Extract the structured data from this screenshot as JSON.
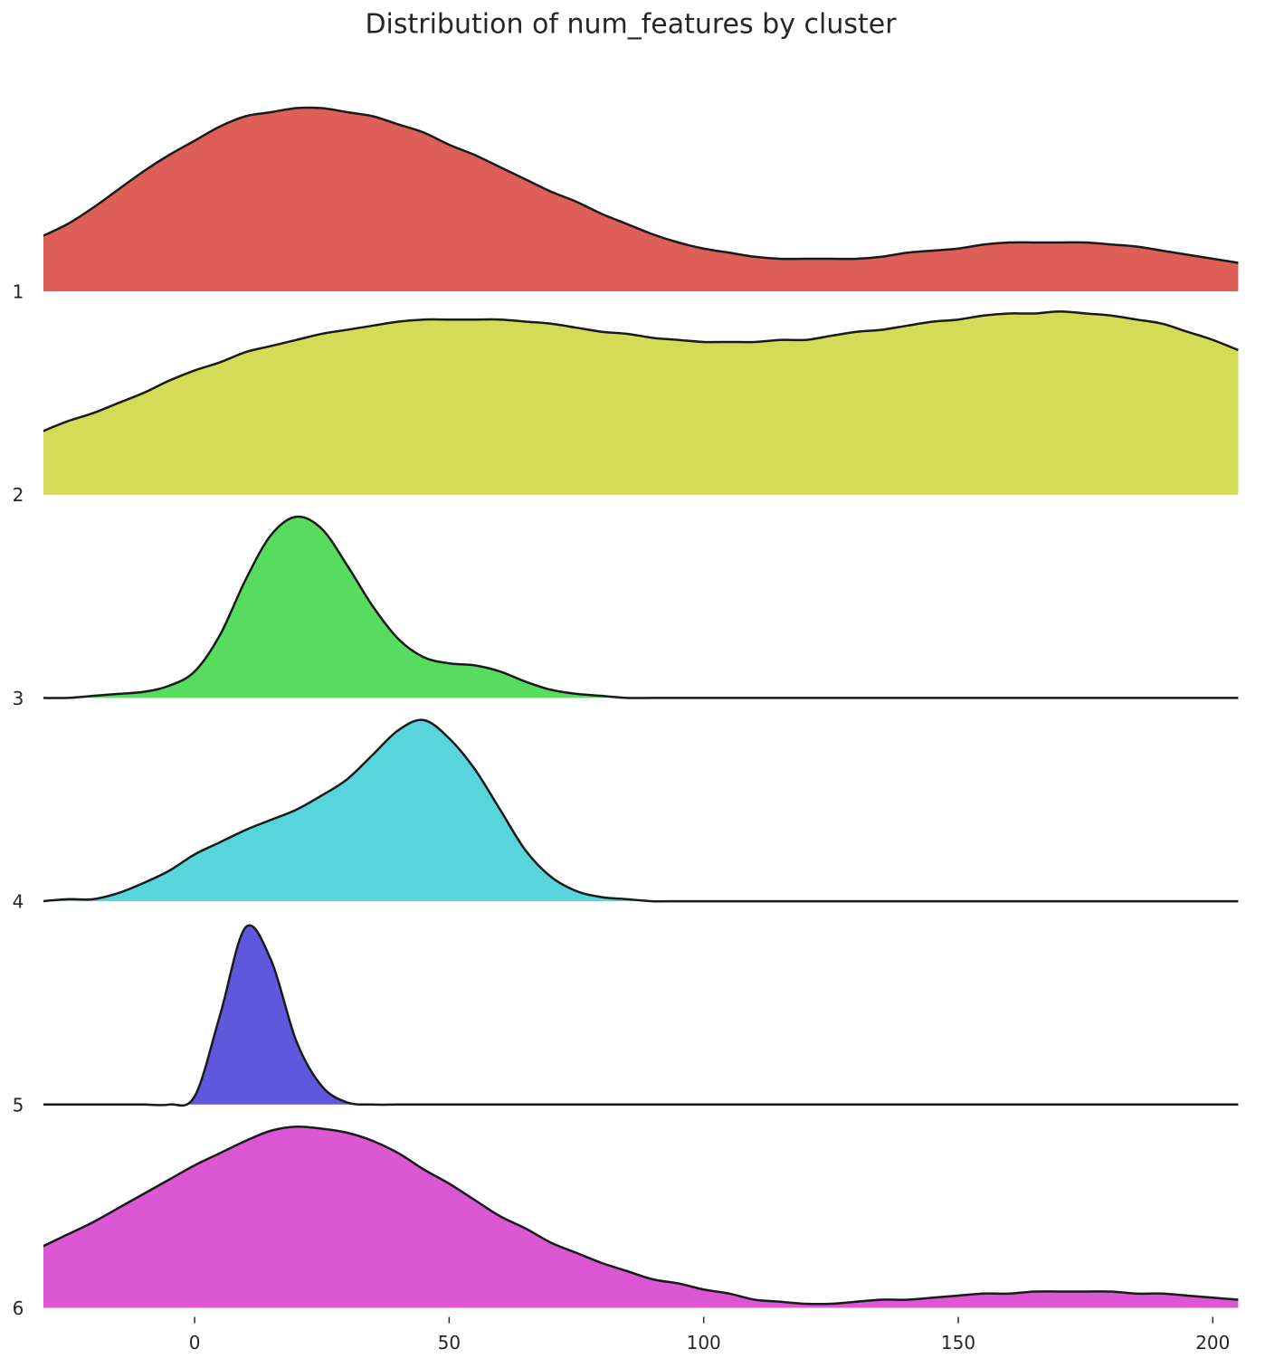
{
  "chart_data": {
    "type": "ridgeline",
    "title": "Distribution of num_features by cluster",
    "x": [
      -30,
      -25,
      -20,
      -15,
      -10,
      -5,
      0,
      5,
      10,
      15,
      20,
      25,
      30,
      35,
      40,
      45,
      50,
      55,
      60,
      65,
      70,
      75,
      80,
      85,
      90,
      95,
      100,
      105,
      110,
      115,
      120,
      125,
      130,
      135,
      140,
      145,
      150,
      155,
      160,
      165,
      170,
      175,
      180,
      185,
      190,
      195,
      200,
      205
    ],
    "xlim": [
      -29.7,
      206.7
    ],
    "xticks": [
      0,
      50,
      100,
      150,
      200
    ],
    "ylim": [
      0,
      1
    ],
    "series": [
      {
        "name": "1",
        "color": "#dd5f57",
        "values": [
          0.27,
          0.33,
          0.41,
          0.5,
          0.59,
          0.67,
          0.74,
          0.81,
          0.86,
          0.88,
          0.9,
          0.9,
          0.88,
          0.86,
          0.82,
          0.78,
          0.72,
          0.67,
          0.61,
          0.55,
          0.49,
          0.44,
          0.38,
          0.33,
          0.28,
          0.24,
          0.21,
          0.19,
          0.17,
          0.16,
          0.16,
          0.16,
          0.16,
          0.17,
          0.19,
          0.2,
          0.21,
          0.23,
          0.24,
          0.24,
          0.24,
          0.24,
          0.23,
          0.22,
          0.2,
          0.18,
          0.16,
          0.14
        ]
      },
      {
        "name": "2",
        "color": "#d4dc57",
        "values": [
          0.31,
          0.36,
          0.4,
          0.45,
          0.5,
          0.56,
          0.61,
          0.65,
          0.7,
          0.73,
          0.76,
          0.79,
          0.81,
          0.83,
          0.85,
          0.86,
          0.86,
          0.86,
          0.86,
          0.85,
          0.84,
          0.82,
          0.8,
          0.79,
          0.77,
          0.76,
          0.75,
          0.75,
          0.75,
          0.76,
          0.76,
          0.78,
          0.8,
          0.81,
          0.83,
          0.85,
          0.86,
          0.88,
          0.89,
          0.89,
          0.9,
          0.89,
          0.88,
          0.86,
          0.84,
          0.8,
          0.76,
          0.71
        ]
      },
      {
        "name": "3",
        "color": "#57dc5f",
        "values": [
          0,
          0,
          0.01,
          0.02,
          0.03,
          0.06,
          0.13,
          0.31,
          0.58,
          0.8,
          0.89,
          0.83,
          0.65,
          0.45,
          0.29,
          0.2,
          0.17,
          0.16,
          0.13,
          0.08,
          0.04,
          0.02,
          0.01,
          0,
          0,
          0,
          0,
          0,
          0,
          0,
          0,
          0,
          0,
          0,
          0,
          0,
          0,
          0,
          0,
          0,
          0,
          0,
          0,
          0,
          0,
          0,
          0,
          0
        ]
      },
      {
        "name": "4",
        "color": "#57d4dc",
        "values": [
          0,
          0.01,
          0.01,
          0.04,
          0.09,
          0.15,
          0.23,
          0.29,
          0.35,
          0.4,
          0.45,
          0.52,
          0.6,
          0.72,
          0.84,
          0.89,
          0.8,
          0.65,
          0.45,
          0.25,
          0.12,
          0.05,
          0.02,
          0.01,
          0,
          0,
          0,
          0,
          0,
          0,
          0,
          0,
          0,
          0,
          0,
          0,
          0,
          0,
          0,
          0,
          0,
          0,
          0,
          0,
          0,
          0,
          0,
          0
        ]
      },
      {
        "name": "5",
        "color": "#5f57dc",
        "values": [
          0,
          0,
          0,
          0,
          0,
          0,
          0.04,
          0.44,
          0.87,
          0.71,
          0.31,
          0.09,
          0.01,
          0,
          0,
          0,
          0,
          0,
          0,
          0,
          0,
          0,
          0,
          0,
          0,
          0,
          0,
          0,
          0,
          0,
          0,
          0,
          0,
          0,
          0,
          0,
          0,
          0,
          0,
          0,
          0,
          0,
          0,
          0,
          0,
          0,
          0,
          0
        ]
      },
      {
        "name": "6",
        "color": "#dc57d4",
        "values": [
          0.3,
          0.36,
          0.42,
          0.49,
          0.56,
          0.63,
          0.7,
          0.76,
          0.82,
          0.87,
          0.89,
          0.88,
          0.86,
          0.82,
          0.76,
          0.68,
          0.61,
          0.53,
          0.45,
          0.39,
          0.32,
          0.27,
          0.22,
          0.18,
          0.14,
          0.12,
          0.09,
          0.07,
          0.04,
          0.03,
          0.02,
          0.02,
          0.03,
          0.04,
          0.04,
          0.05,
          0.06,
          0.07,
          0.07,
          0.08,
          0.08,
          0.08,
          0.08,
          0.07,
          0.07,
          0.06,
          0.05,
          0.04
        ]
      }
    ]
  }
}
